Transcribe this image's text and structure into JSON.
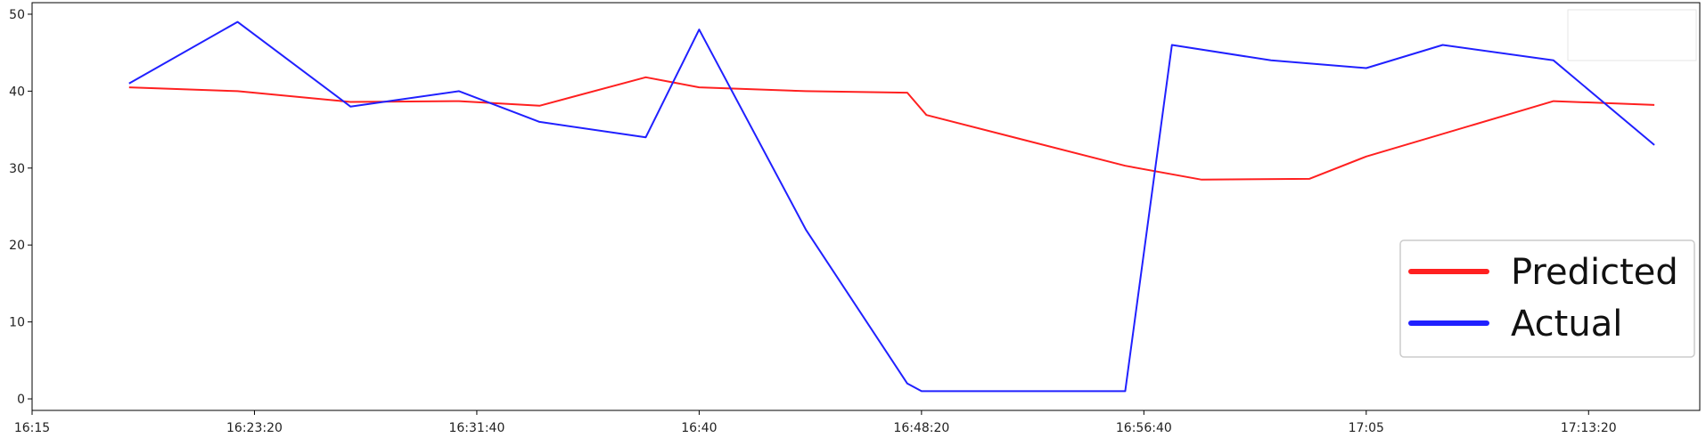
{
  "chart_data": {
    "type": "line",
    "title": "",
    "xlabel": "",
    "ylabel": "",
    "x_tick_labels": [
      "16:15",
      "16:23:20",
      "16:31:40",
      "16:40",
      "16:48:20",
      "16:56:40",
      "17:05",
      "17:13:20"
    ],
    "x_ticks_seconds": [
      0,
      500,
      1000,
      1500,
      2000,
      2500,
      3000,
      3500
    ],
    "xlim_seconds": [
      0,
      3750
    ],
    "y_ticks": [
      0,
      10,
      20,
      30,
      40,
      50
    ],
    "ylim": [
      -1.5,
      51.5
    ],
    "grid": false,
    "legend_position": "center-right",
    "series": [
      {
        "name": "Predicted",
        "color": "#ff2020",
        "points": [
          {
            "t": "16:18:38",
            "s": 218,
            "y": 40.5
          },
          {
            "t": "16:22:42",
            "s": 462,
            "y": 40.0
          },
          {
            "t": "16:26:56",
            "s": 716,
            "y": 38.6
          },
          {
            "t": "16:31:00",
            "s": 960,
            "y": 38.7
          },
          {
            "t": "16:34:01",
            "s": 1141,
            "y": 38.1
          },
          {
            "t": "16:38:00",
            "s": 1380,
            "y": 41.8
          },
          {
            "t": "16:40:00",
            "s": 1500,
            "y": 40.5
          },
          {
            "t": "16:44:00",
            "s": 1740,
            "y": 40.0
          },
          {
            "t": "16:47:48",
            "s": 1968,
            "y": 39.8
          },
          {
            "t": "16:48:31",
            "s": 2011,
            "y": 36.9
          },
          {
            "t": "16:55:58",
            "s": 2458,
            "y": 30.3
          },
          {
            "t": "16:58:50",
            "s": 2630,
            "y": 28.5
          },
          {
            "t": "17:02:52",
            "s": 2872,
            "y": 28.6
          },
          {
            "t": "17:05:00",
            "s": 3000,
            "y": 31.5
          },
          {
            "t": "17:12:01",
            "s": 3421,
            "y": 38.7
          },
          {
            "t": "17:15:48",
            "s": 3648,
            "y": 38.2
          }
        ]
      },
      {
        "name": "Actual",
        "color": "#2020ff",
        "points": [
          {
            "t": "16:18:38",
            "s": 218,
            "y": 41
          },
          {
            "t": "16:22:42",
            "s": 462,
            "y": 49
          },
          {
            "t": "16:26:56",
            "s": 716,
            "y": 38
          },
          {
            "t": "16:31:00",
            "s": 960,
            "y": 40
          },
          {
            "t": "16:34:01",
            "s": 1141,
            "y": 36
          },
          {
            "t": "16:38:00",
            "s": 1380,
            "y": 34
          },
          {
            "t": "16:40:00",
            "s": 1500,
            "y": 48
          },
          {
            "t": "16:44:00",
            "s": 1740,
            "y": 22
          },
          {
            "t": "16:47:48",
            "s": 1968,
            "y": 2
          },
          {
            "t": "16:48:20",
            "s": 2000,
            "y": 1
          },
          {
            "t": "16:55:58",
            "s": 2458,
            "y": 1
          },
          {
            "t": "16:57:43",
            "s": 2563,
            "y": 46
          },
          {
            "t": "17:01:26",
            "s": 2786,
            "y": 44
          },
          {
            "t": "17:05:00",
            "s": 3000,
            "y": 43
          },
          {
            "t": "17:07:52",
            "s": 3172,
            "y": 46
          },
          {
            "t": "17:12:01",
            "s": 3421,
            "y": 44
          },
          {
            "t": "17:15:48",
            "s": 3648,
            "y": 33
          }
        ]
      }
    ]
  }
}
